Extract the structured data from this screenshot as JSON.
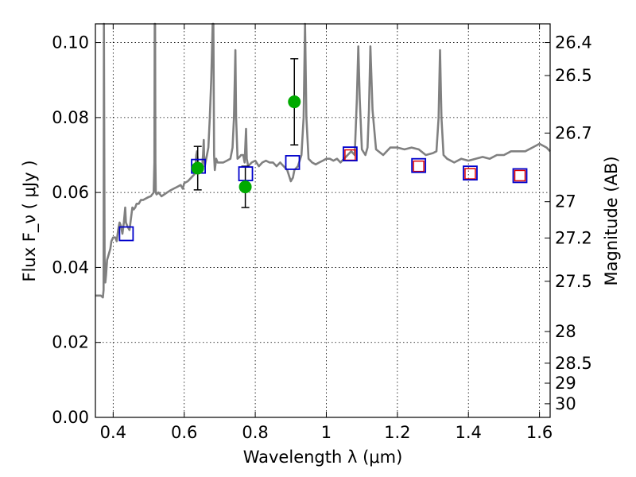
{
  "chart_data": {
    "type": "scatter",
    "xlabel": "Wavelength  λ (μm)",
    "ylabel": "Flux  F_ν  ( μJy )",
    "ylabel_right": "Magnitude (AB)",
    "xlim": [
      0.35,
      1.63
    ],
    "ylim": [
      0.0,
      0.105
    ],
    "grid": true,
    "x_ticks": [
      "0.4",
      "0.6",
      "0.8",
      "1",
      "1.2",
      "1.4",
      "1.6"
    ],
    "x_tick_values": [
      0.4,
      0.6,
      0.8,
      1.0,
      1.2,
      1.4,
      1.6
    ],
    "y_ticks": [
      "0.00",
      "0.02",
      "0.04",
      "0.06",
      "0.08",
      "0.10"
    ],
    "y_tick_values": [
      0.0,
      0.02,
      0.04,
      0.06,
      0.08,
      0.1
    ],
    "magnitude_ticks": [
      "26.4",
      "26.5",
      "26.7",
      "27",
      "27.2",
      "27.5",
      "28",
      "28.5",
      "29",
      "30"
    ],
    "magnitude_tick_values": [
      26.4,
      26.5,
      26.7,
      27.0,
      27.2,
      27.5,
      28.0,
      28.5,
      29.0,
      30.0
    ],
    "series": [
      {
        "kind": "template-spectrum",
        "color": "#808080",
        "x": [
          0.35,
          0.365,
          0.371,
          0.373,
          0.374,
          0.376,
          0.378,
          0.38,
          0.383,
          0.386,
          0.392,
          0.395,
          0.4,
          0.406,
          0.41,
          0.414,
          0.418,
          0.422,
          0.426,
          0.43,
          0.434,
          0.436,
          0.44,
          0.446,
          0.45,
          0.454,
          0.458,
          0.462,
          0.466,
          0.472,
          0.478,
          0.484,
          0.488,
          0.494,
          0.5,
          0.506,
          0.51,
          0.514,
          0.516,
          0.517,
          0.518,
          0.519,
          0.52,
          0.522,
          0.528,
          0.536,
          0.544,
          0.552,
          0.56,
          0.57,
          0.58,
          0.59,
          0.596,
          0.6,
          0.61,
          0.62,
          0.63,
          0.634,
          0.636,
          0.64,
          0.646,
          0.65,
          0.653,
          0.655,
          0.656,
          0.657,
          0.658,
          0.66,
          0.664,
          0.668,
          0.672,
          0.676,
          0.68,
          0.682,
          0.683,
          0.684,
          0.686,
          0.69,
          0.694,
          0.7,
          0.71,
          0.72,
          0.73,
          0.736,
          0.74,
          0.744,
          0.746,
          0.75,
          0.756,
          0.76,
          0.766,
          0.77,
          0.774,
          0.776,
          0.78,
          0.79,
          0.8,
          0.81,
          0.82,
          0.83,
          0.84,
          0.85,
          0.86,
          0.87,
          0.88,
          0.89,
          0.9,
          0.906,
          0.91,
          0.92,
          0.93,
          0.936,
          0.94,
          0.944,
          0.95,
          0.96,
          0.97,
          0.98,
          0.99,
          1.0,
          1.01,
          1.02,
          1.03,
          1.04,
          1.05,
          1.06,
          1.07,
          1.08,
          1.086,
          1.09,
          1.094,
          1.1,
          1.11,
          1.116,
          1.12,
          1.124,
          1.13,
          1.14,
          1.16,
          1.18,
          1.2,
          1.22,
          1.24,
          1.26,
          1.28,
          1.3,
          1.31,
          1.316,
          1.32,
          1.324,
          1.33,
          1.34,
          1.36,
          1.38,
          1.4,
          1.42,
          1.44,
          1.46,
          1.48,
          1.5,
          1.52,
          1.54,
          1.56,
          1.58,
          1.6,
          1.62,
          1.63
        ],
        "y": [
          0.0325,
          0.0325,
          0.032,
          0.034,
          0.105,
          0.042,
          0.036,
          0.038,
          0.042,
          0.043,
          0.045,
          0.047,
          0.048,
          0.048,
          0.047,
          0.05,
          0.052,
          0.051,
          0.049,
          0.052,
          0.056,
          0.052,
          0.051,
          0.05,
          0.053,
          0.056,
          0.0555,
          0.056,
          0.057,
          0.057,
          0.058,
          0.058,
          0.0582,
          0.0585,
          0.0588,
          0.059,
          0.0595,
          0.06,
          0.068,
          0.105,
          0.105,
          0.068,
          0.06,
          0.0595,
          0.06,
          0.059,
          0.0595,
          0.06,
          0.0605,
          0.061,
          0.0615,
          0.062,
          0.061,
          0.0625,
          0.063,
          0.064,
          0.065,
          0.07,
          0.071,
          0.066,
          0.066,
          0.0665,
          0.07,
          0.074,
          0.07,
          0.068,
          0.067,
          0.068,
          0.07,
          0.072,
          0.08,
          0.09,
          0.105,
          0.105,
          0.09,
          0.07,
          0.066,
          0.069,
          0.068,
          0.068,
          0.068,
          0.0685,
          0.069,
          0.072,
          0.08,
          0.098,
          0.08,
          0.069,
          0.0695,
          0.07,
          0.07,
          0.068,
          0.077,
          0.069,
          0.067,
          0.068,
          0.0685,
          0.067,
          0.068,
          0.0685,
          0.068,
          0.068,
          0.067,
          0.068,
          0.067,
          0.066,
          0.063,
          0.064,
          0.066,
          0.067,
          0.07,
          0.08,
          0.105,
          0.08,
          0.069,
          0.068,
          0.0675,
          0.068,
          0.0685,
          0.069,
          0.069,
          0.0685,
          0.069,
          0.068,
          0.069,
          0.07,
          0.071,
          0.07,
          0.085,
          0.099,
          0.085,
          0.0715,
          0.07,
          0.072,
          0.082,
          0.099,
          0.082,
          0.0715,
          0.07,
          0.072,
          0.072,
          0.0715,
          0.072,
          0.0715,
          0.07,
          0.0705,
          0.071,
          0.08,
          0.098,
          0.08,
          0.07,
          0.069,
          0.068,
          0.069,
          0.0685,
          0.069,
          0.0695,
          0.069,
          0.07,
          0.07,
          0.071,
          0.071,
          0.071,
          0.072,
          0.073,
          0.072,
          0.071
        ]
      },
      {
        "kind": "observed",
        "marker": "circle",
        "color": "#00aa00",
        "x": [
          0.638,
          0.772,
          0.91
        ],
        "y": [
          0.0665,
          0.0615,
          0.0842
        ],
        "yerr": [
          0.0058,
          0.0055,
          0.0115
        ]
      },
      {
        "kind": "model-blue",
        "marker": "square",
        "color": "#0000cc",
        "x": [
          0.437,
          0.64,
          0.773,
          0.905,
          1.067,
          1.26,
          1.405,
          1.545
        ],
        "y": [
          0.049,
          0.067,
          0.065,
          0.068,
          0.0703,
          0.0672,
          0.0652,
          0.0645
        ]
      },
      {
        "kind": "model-red",
        "marker": "square",
        "color": "#dd0000",
        "x": [
          1.067,
          1.26,
          1.405,
          1.545
        ],
        "y": [
          0.07,
          0.067,
          0.065,
          0.0645
        ]
      }
    ]
  }
}
